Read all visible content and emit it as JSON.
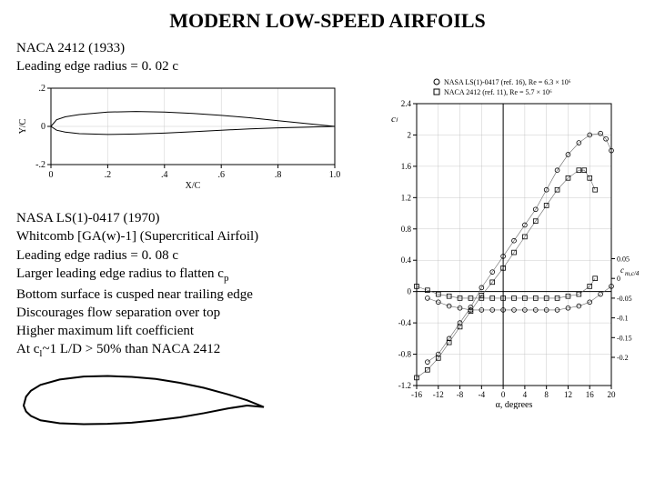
{
  "title": "MODERN LOW-SPEED AIRFOILS",
  "naca": {
    "line1": "NACA 2412 (1933)",
    "line2": "Leading edge radius = 0. 02 c"
  },
  "chart1": {
    "type": "line",
    "xlabel": "X/C",
    "ylabel": "Y/C",
    "xlim": [
      0,
      1.0
    ],
    "ylim": [
      -0.2,
      0.2
    ],
    "xticks": [
      0,
      0.2,
      0.4,
      0.6,
      0.8,
      1.0
    ],
    "xtick_labels": [
      "0",
      ".2",
      ".4",
      ".6",
      ".8",
      "1.0"
    ],
    "yticks": [
      -0.2,
      0,
      0.2
    ],
    "ytick_labels": [
      "-.2",
      "0",
      ".2"
    ],
    "grid_color": "#cccccc",
    "axis_color": "#000000",
    "tick_fontsize": 10,
    "label_fontsize": 10,
    "upper": [
      [
        0,
        0
      ],
      [
        0.02,
        0.035
      ],
      [
        0.05,
        0.05
      ],
      [
        0.1,
        0.062
      ],
      [
        0.2,
        0.075
      ],
      [
        0.3,
        0.078
      ],
      [
        0.4,
        0.075
      ],
      [
        0.5,
        0.068
      ],
      [
        0.6,
        0.058
      ],
      [
        0.7,
        0.045
      ],
      [
        0.8,
        0.03
      ],
      [
        0.9,
        0.015
      ],
      [
        1.0,
        0
      ]
    ],
    "lower": [
      [
        0,
        0
      ],
      [
        0.02,
        -0.02
      ],
      [
        0.05,
        -0.03
      ],
      [
        0.1,
        -0.038
      ],
      [
        0.2,
        -0.042
      ],
      [
        0.3,
        -0.04
      ],
      [
        0.4,
        -0.035
      ],
      [
        0.5,
        -0.028
      ],
      [
        0.6,
        -0.02
      ],
      [
        0.7,
        -0.013
      ],
      [
        0.8,
        -0.008
      ],
      [
        0.9,
        -0.004
      ],
      [
        1.0,
        0
      ]
    ],
    "line_color": "#000000",
    "background_color": "#ffffff"
  },
  "nasa": {
    "l1": "NASA LS(1)-0417 (1970)",
    "l2": "Whitcomb [GA(w)-1] (Supercritical Airfoil)",
    "l3": "Leading edge radius = 0. 08 c",
    "l4_a": "Larger leading edge radius to flatten c",
    "l4_sub": "p",
    "l5": "Bottom surface is cusped near trailing edge",
    "l6": "Discourages flow separation over top",
    "l7": "Higher maximum lift coefficient",
    "l8_a": "At c",
    "l8_sub": "l",
    "l8_b": "~1 L/D > 50% than NACA 2412"
  },
  "airfoil2": {
    "outline_color": "#000000",
    "fill_color": "#ffffff",
    "line_width": 2,
    "upper": [
      [
        0,
        0
      ],
      [
        0.01,
        0.03
      ],
      [
        0.03,
        0.05
      ],
      [
        0.07,
        0.07
      ],
      [
        0.15,
        0.088
      ],
      [
        0.25,
        0.098
      ],
      [
        0.35,
        0.1
      ],
      [
        0.45,
        0.097
      ],
      [
        0.55,
        0.09
      ],
      [
        0.65,
        0.077
      ],
      [
        0.75,
        0.06
      ],
      [
        0.85,
        0.038
      ],
      [
        0.93,
        0.018
      ],
      [
        1.0,
        -0.005
      ]
    ],
    "lower": [
      [
        0,
        0
      ],
      [
        0.01,
        -0.02
      ],
      [
        0.03,
        -0.035
      ],
      [
        0.07,
        -0.05
      ],
      [
        0.15,
        -0.06
      ],
      [
        0.25,
        -0.063
      ],
      [
        0.35,
        -0.062
      ],
      [
        0.45,
        -0.058
      ],
      [
        0.55,
        -0.05
      ],
      [
        0.65,
        -0.04
      ],
      [
        0.75,
        -0.026
      ],
      [
        0.85,
        -0.01
      ],
      [
        0.93,
        0.0
      ],
      [
        1.0,
        -0.005
      ]
    ]
  },
  "chart2": {
    "type": "scatter-line",
    "xlabel": "α, degrees",
    "ylabel_left": "cₗ",
    "ylabel_right_top": "cₘ, c/4",
    "ylabel_right_bot": "cₘ c/4",
    "legend": {
      "items": [
        {
          "marker": "circle",
          "label": "NASA LS(1)-0417 (ref. 16), Re = 6.3 × 10⁶"
        },
        {
          "marker": "square",
          "label": "NACA 2412 (ref. 11), Re = 5.7 × 10⁶"
        }
      ],
      "fontsize": 8
    },
    "xlim": [
      -16,
      20
    ],
    "ylim_cl": [
      -1.2,
      2.4
    ],
    "ylim_cm": [
      -0.2,
      0.05
    ],
    "xticks": [
      -16,
      -12,
      -8,
      -4,
      0,
      4,
      8,
      12,
      16,
      20
    ],
    "cl_ticks": [
      -1.2,
      -0.8,
      -0.4,
      0,
      0.4,
      0.8,
      1.2,
      1.6,
      2.0,
      2.4
    ],
    "cm_ticks": [
      -0.2,
      -0.15,
      -0.1,
      -0.05,
      0,
      0.05
    ],
    "grid_color": "#bbbbbb",
    "axis_color": "#000000",
    "marker_size": 4,
    "series": {
      "nasa_cl": {
        "marker": "circle",
        "color": "#000000",
        "points": [
          [
            -14,
            -0.9
          ],
          [
            -12,
            -0.8
          ],
          [
            -10,
            -0.6
          ],
          [
            -8,
            -0.4
          ],
          [
            -6,
            -0.2
          ],
          [
            -4,
            0.05
          ],
          [
            -2,
            0.25
          ],
          [
            0,
            0.45
          ],
          [
            2,
            0.65
          ],
          [
            4,
            0.85
          ],
          [
            6,
            1.05
          ],
          [
            8,
            1.3
          ],
          [
            10,
            1.55
          ],
          [
            12,
            1.75
          ],
          [
            14,
            1.9
          ],
          [
            16,
            2.0
          ],
          [
            18,
            2.02
          ],
          [
            19,
            1.95
          ],
          [
            20,
            1.8
          ]
        ]
      },
      "naca_cl": {
        "marker": "square",
        "color": "#000000",
        "points": [
          [
            -16,
            -1.1
          ],
          [
            -14,
            -1.0
          ],
          [
            -12,
            -0.85
          ],
          [
            -10,
            -0.65
          ],
          [
            -8,
            -0.45
          ],
          [
            -6,
            -0.25
          ],
          [
            -4,
            -0.05
          ],
          [
            -2,
            0.12
          ],
          [
            0,
            0.3
          ],
          [
            2,
            0.5
          ],
          [
            4,
            0.7
          ],
          [
            6,
            0.9
          ],
          [
            8,
            1.1
          ],
          [
            10,
            1.3
          ],
          [
            12,
            1.45
          ],
          [
            14,
            1.55
          ],
          [
            15,
            1.55
          ],
          [
            16,
            1.45
          ],
          [
            17,
            1.3
          ]
        ]
      },
      "nasa_cm": {
        "marker": "circle",
        "color": "#000000",
        "points": [
          [
            -14,
            -0.05
          ],
          [
            -12,
            -0.06
          ],
          [
            -10,
            -0.07
          ],
          [
            -8,
            -0.075
          ],
          [
            -6,
            -0.08
          ],
          [
            -4,
            -0.08
          ],
          [
            -2,
            -0.08
          ],
          [
            0,
            -0.08
          ],
          [
            2,
            -0.08
          ],
          [
            4,
            -0.08
          ],
          [
            6,
            -0.08
          ],
          [
            8,
            -0.08
          ],
          [
            10,
            -0.08
          ],
          [
            12,
            -0.075
          ],
          [
            14,
            -0.07
          ],
          [
            16,
            -0.06
          ],
          [
            18,
            -0.04
          ],
          [
            20,
            -0.02
          ]
        ]
      },
      "naca_cm": {
        "marker": "square",
        "color": "#000000",
        "points": [
          [
            -16,
            -0.02
          ],
          [
            -14,
            -0.03
          ],
          [
            -12,
            -0.04
          ],
          [
            -10,
            -0.045
          ],
          [
            -8,
            -0.05
          ],
          [
            -6,
            -0.05
          ],
          [
            -4,
            -0.05
          ],
          [
            -2,
            -0.05
          ],
          [
            0,
            -0.05
          ],
          [
            2,
            -0.05
          ],
          [
            4,
            -0.05
          ],
          [
            6,
            -0.05
          ],
          [
            8,
            -0.05
          ],
          [
            10,
            -0.05
          ],
          [
            12,
            -0.045
          ],
          [
            14,
            -0.04
          ],
          [
            16,
            -0.02
          ],
          [
            17,
            0.0
          ]
        ]
      }
    }
  }
}
